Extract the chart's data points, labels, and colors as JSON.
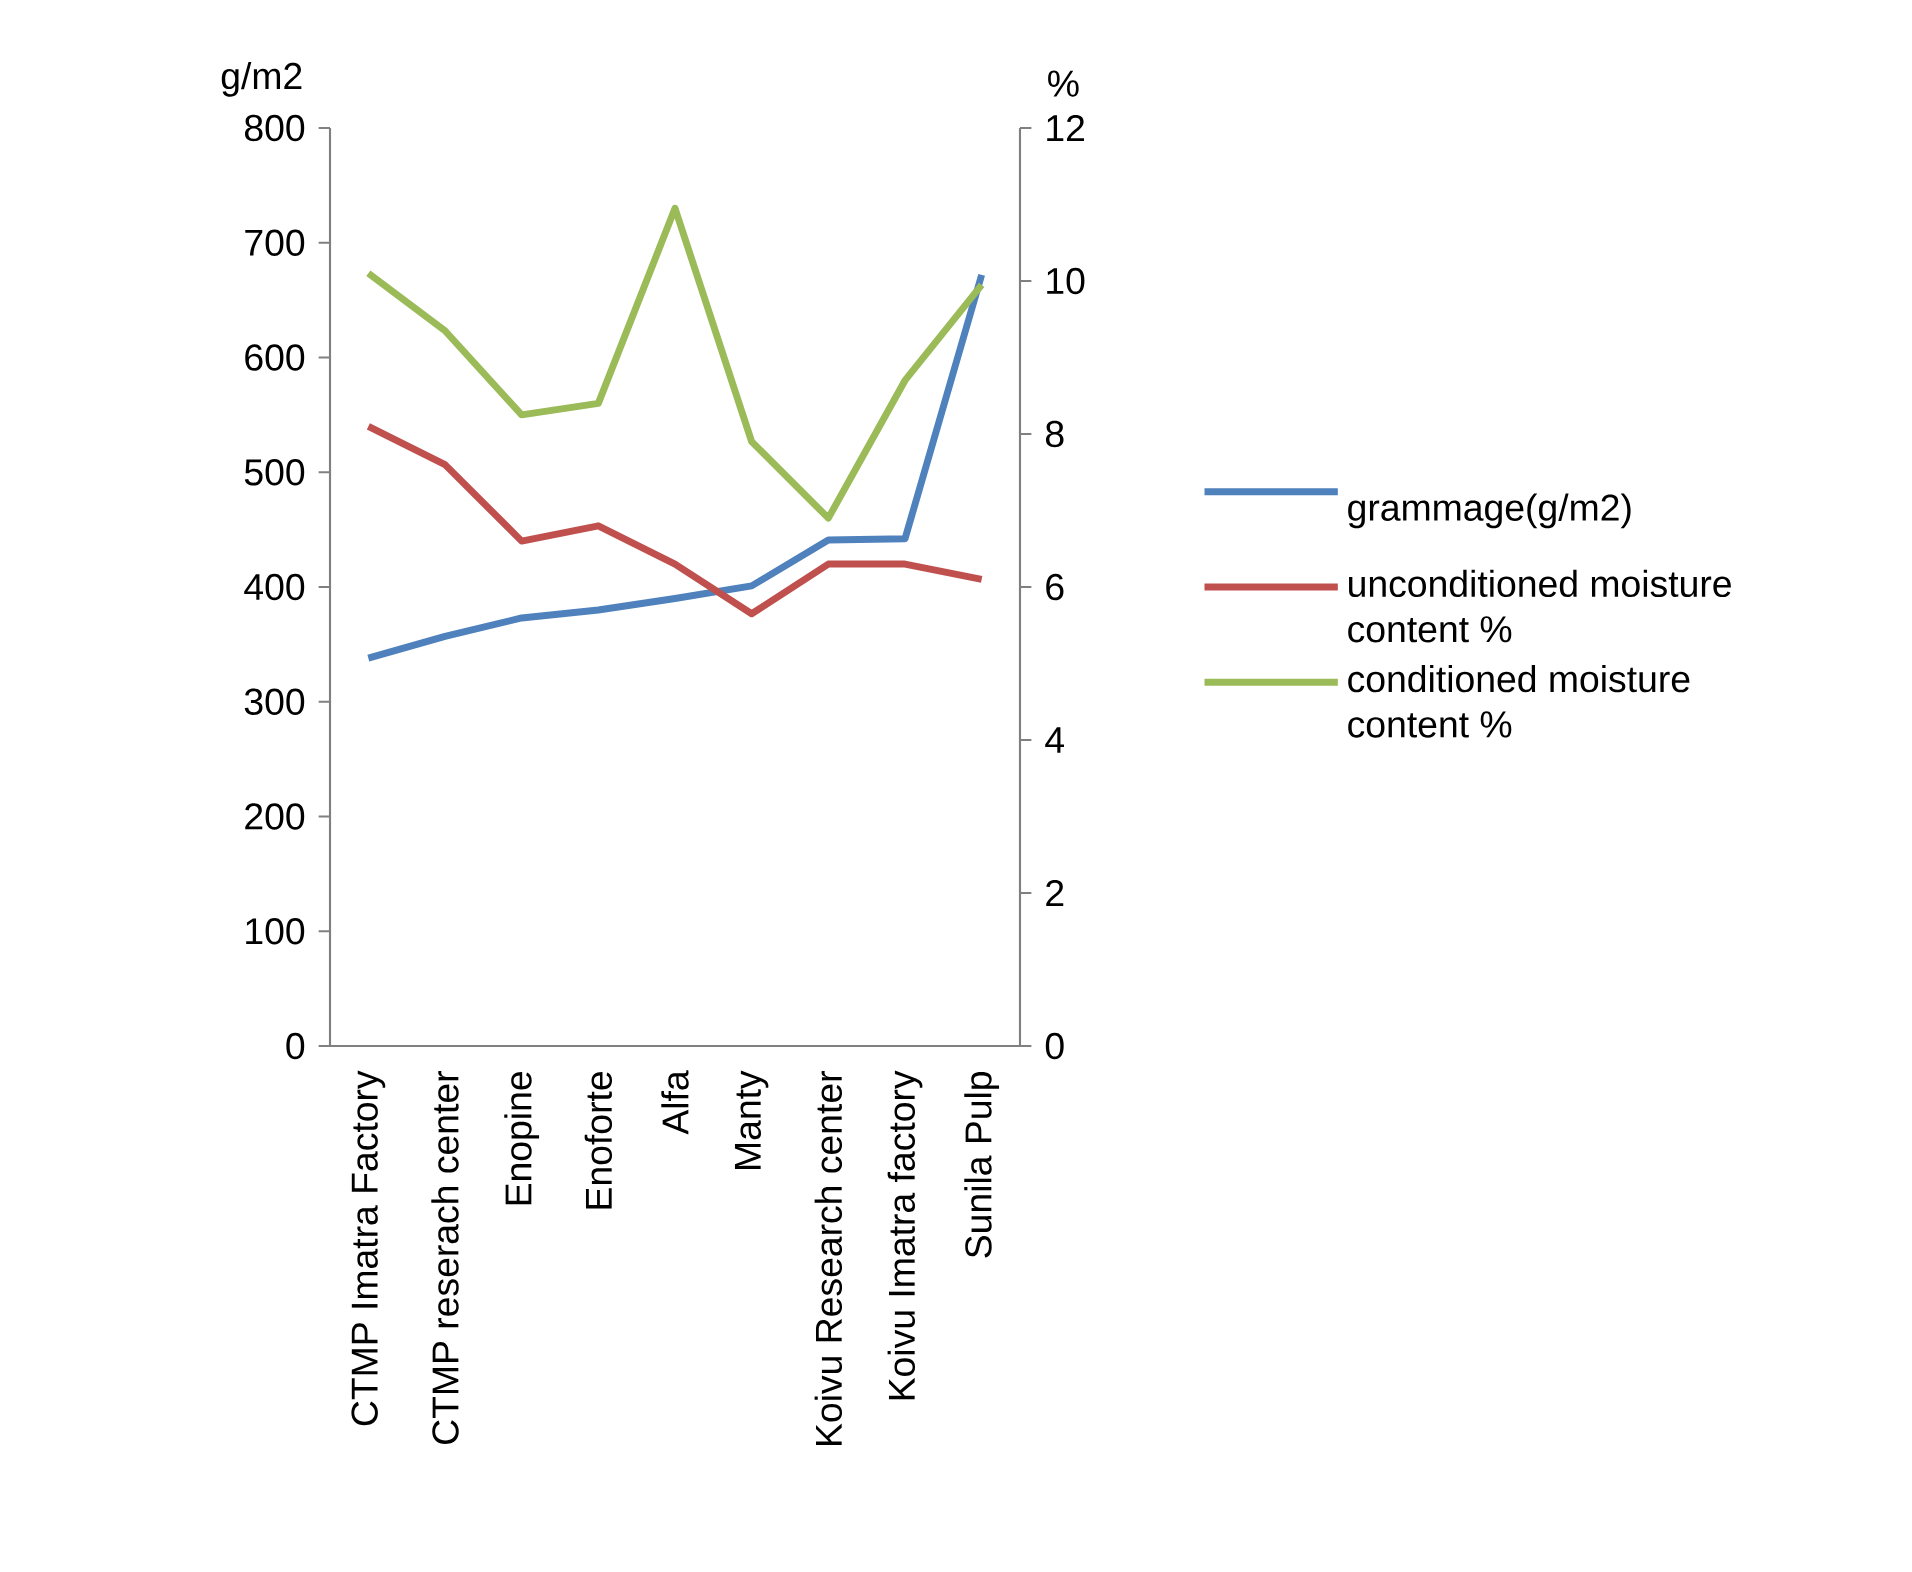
{
  "chart_data": {
    "type": "line",
    "ylabel": "g/m2",
    "y2label": "%",
    "categories": [
      "CTMP Imatra Factory",
      "CTMP reserach center",
      "Enopine",
      "Enoforte",
      "Alfa",
      "Manty",
      "Koivu Research center",
      "Koivu Imatra factory",
      "Sunila Pulp"
    ],
    "series": [
      {
        "name": "grammage(g/m2)",
        "color": "#4f81bd",
        "values": [
          338,
          357,
          373,
          380,
          390,
          401,
          441,
          442,
          672
        ]
      },
      {
        "name": "unconditioned moisture content %",
        "color": "#c0504d",
        "axis": "y2",
        "values": [
          8.1,
          7.6,
          6.6,
          6.8,
          6.3,
          5.65,
          6.3,
          6.3,
          6.1
        ]
      },
      {
        "name": "conditioned moisture content %",
        "color": "#9bbb59",
        "axis": "y2",
        "values": [
          10.1,
          9.35,
          8.25,
          8.4,
          10.95,
          7.9,
          6.9,
          8.7,
          9.95
        ]
      }
    ],
    "ylim": [
      0,
      800
    ],
    "yticks": [
      0,
      100,
      200,
      300,
      400,
      500,
      600,
      700,
      800
    ],
    "y2lim": [
      0,
      12
    ],
    "y2ticks": [
      0,
      2,
      4,
      6,
      8,
      10,
      12
    ],
    "grid": false,
    "legend": "right",
    "marker": "none",
    "line_style": "solid"
  }
}
